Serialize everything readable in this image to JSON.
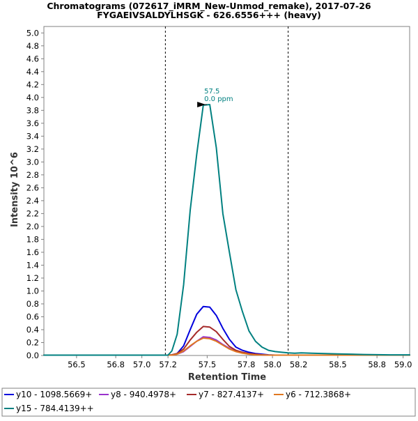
{
  "chart_data": {
    "type": "line",
    "title": "Chromatograms (072617_iMRM_New-Unmod_remake), 2017-07-26",
    "subtitle": "FYGAEIVSALDYLHSGK - 626.6556+++ (heavy)",
    "xlabel": "Retention Time",
    "ylabel": "Intensity 10^6",
    "xlim": [
      56.25,
      59.05
    ],
    "ylim": [
      0.0,
      5.1
    ],
    "xticks": [
      56.5,
      56.8,
      57.0,
      57.2,
      57.5,
      57.8,
      58.0,
      58.2,
      58.5,
      58.8,
      59.0
    ],
    "xtick_labels": [
      "56.5",
      "56.8",
      "57.0",
      "57.2",
      "57.5",
      "57.8",
      "58.0",
      "58.2",
      "58.5",
      "58.8",
      "59.0"
    ],
    "yticks": [
      0.0,
      0.2,
      0.4,
      0.6,
      0.8,
      1.0,
      1.2,
      1.4,
      1.6,
      1.8,
      2.0,
      2.2,
      2.4,
      2.6,
      2.8,
      3.0,
      3.2,
      3.4,
      3.6,
      3.8,
      4.0,
      4.2,
      4.4,
      4.6,
      4.8,
      5.0
    ],
    "ytick_labels": [
      "0.0",
      "0.2",
      "0.4",
      "0.6",
      "0.8",
      "1.0",
      "1.2",
      "1.4",
      "1.6",
      "1.8",
      "2.0",
      "2.2",
      "2.4",
      "2.6",
      "2.8",
      "3.0",
      "3.2",
      "3.4",
      "3.6",
      "3.8",
      "4.0",
      "4.2",
      "4.4",
      "4.6",
      "4.8",
      "5.0"
    ],
    "grid": false,
    "legend_position": "bottom",
    "integration_boundaries": [
      57.18,
      58.12
    ],
    "peak_annotation": {
      "x": 57.52,
      "y": 3.89,
      "label_line1": "57.5",
      "label_line2": "0.0 ppm",
      "color": "#008080"
    },
    "x": [
      56.25,
      56.6,
      56.9,
      57.2,
      57.23,
      57.27,
      57.32,
      57.37,
      57.42,
      57.47,
      57.52,
      57.57,
      57.62,
      57.67,
      57.72,
      57.77,
      57.82,
      57.87,
      57.92,
      57.97,
      58.02,
      58.07,
      58.12,
      58.17,
      58.22,
      58.3,
      58.4,
      58.5,
      58.6,
      58.7,
      58.8,
      58.9,
      59.05
    ],
    "series": [
      {
        "name": "y10 - 1098.5669+",
        "color": "#0000dd",
        "values": [
          0.005,
          0.005,
          0.005,
          0.005,
          0.01,
          0.03,
          0.15,
          0.4,
          0.64,
          0.76,
          0.75,
          0.62,
          0.42,
          0.25,
          0.13,
          0.08,
          0.05,
          0.03,
          0.02,
          0.01,
          0.005,
          0.005,
          0.005,
          0.005,
          0.005,
          0.005,
          0.005,
          0.005,
          0.005,
          0.005,
          0.005,
          0.005,
          0.005
        ]
      },
      {
        "name": "y8 - 940.4978+",
        "color": "#9932cc",
        "values": [
          0.005,
          0.005,
          0.005,
          0.005,
          0.005,
          0.02,
          0.06,
          0.14,
          0.22,
          0.29,
          0.28,
          0.24,
          0.17,
          0.11,
          0.06,
          0.04,
          0.02,
          0.015,
          0.01,
          0.005,
          0.005,
          0.005,
          0.005,
          0.005,
          0.005,
          0.005,
          0.005,
          0.005,
          0.005,
          0.005,
          0.005,
          0.005,
          0.005
        ]
      },
      {
        "name": "y7 - 827.4137+",
        "color": "#a52a2a",
        "values": [
          0.005,
          0.005,
          0.005,
          0.005,
          0.01,
          0.03,
          0.1,
          0.24,
          0.36,
          0.45,
          0.44,
          0.37,
          0.25,
          0.14,
          0.08,
          0.05,
          0.03,
          0.02,
          0.01,
          0.005,
          0.005,
          0.005,
          0.005,
          0.005,
          0.005,
          0.005,
          0.005,
          0.005,
          0.005,
          0.005,
          0.005,
          0.005,
          0.005
        ]
      },
      {
        "name": "y6 - 712.3868+",
        "color": "#e07820",
        "values": [
          0.005,
          0.005,
          0.005,
          0.005,
          0.005,
          0.02,
          0.07,
          0.15,
          0.22,
          0.27,
          0.26,
          0.22,
          0.16,
          0.1,
          0.06,
          0.035,
          0.02,
          0.01,
          0.008,
          0.005,
          0.005,
          0.005,
          0.005,
          0.005,
          0.005,
          0.005,
          0.005,
          0.005,
          0.005,
          0.005,
          0.005,
          0.005,
          0.005
        ]
      },
      {
        "name": "y15 - 784.4139++",
        "color": "#008080",
        "values": [
          0.005,
          0.005,
          0.005,
          0.005,
          0.07,
          0.33,
          1.1,
          2.25,
          3.12,
          3.88,
          3.89,
          3.22,
          2.2,
          1.6,
          1.02,
          0.68,
          0.38,
          0.22,
          0.13,
          0.08,
          0.06,
          0.05,
          0.04,
          0.035,
          0.04,
          0.035,
          0.03,
          0.025,
          0.02,
          0.015,
          0.012,
          0.01,
          0.01
        ]
      }
    ]
  }
}
